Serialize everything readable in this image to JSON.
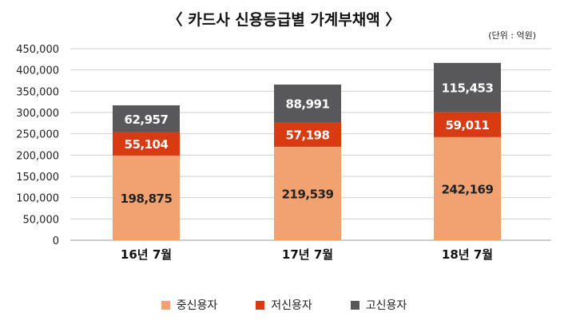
{
  "chart_data": {
    "type": "bar",
    "stacked": true,
    "title": "〈 카드사 신용등급별 가계부채액 〉",
    "unit": "(단위 : 억원)",
    "categories": [
      "16년 7월",
      "17년 7월",
      "18년 7월"
    ],
    "series": [
      {
        "name": "중신용자",
        "color": "#F2A271",
        "values": [
          198875,
          219539,
          242169
        ],
        "labels": [
          "198,875",
          "219,539",
          "242,169"
        ]
      },
      {
        "name": "저신용자",
        "color": "#D83A12",
        "values": [
          55104,
          57198,
          59011
        ],
        "labels": [
          "55,104",
          "57,198",
          "59,011"
        ]
      },
      {
        "name": "고신용자",
        "color": "#58585A",
        "values": [
          62957,
          88991,
          115453
        ],
        "labels": [
          "62,957",
          "88,991",
          "115,453"
        ]
      }
    ],
    "ylim": [
      0,
      450000
    ],
    "yticks": [
      "0",
      "50,000",
      "100,000",
      "150,000",
      "200,000",
      "250,000",
      "300,000",
      "350,000",
      "400,000",
      "450,000"
    ],
    "grid": true,
    "legend": "bottom"
  }
}
